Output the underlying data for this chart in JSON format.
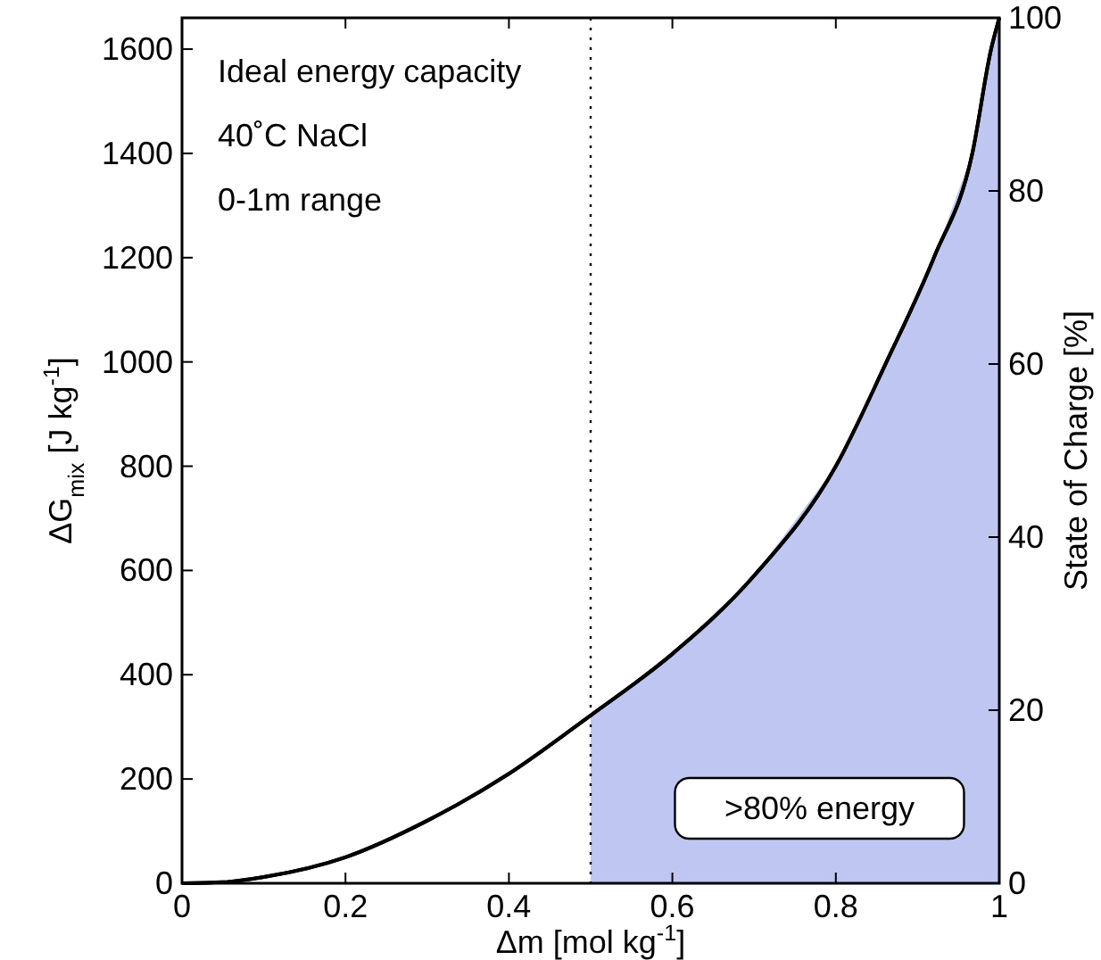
{
  "chart_data": {
    "type": "line",
    "xlabel": "Δm [mol kg$^{-1}$]",
    "ylabel": "ΔG$_{mix}$ [J kg$^{-1}$]",
    "y2label": "State of Charge [%]",
    "x": [
      0,
      0.05,
      0.1,
      0.2,
      0.3,
      0.4,
      0.5,
      0.6,
      0.7,
      0.8,
      0.862,
      0.92,
      0.967,
      0.99,
      1
    ],
    "series": [
      {
        "type": "area",
        "color": "#c0c6f2",
        "x": [
          0.5,
          0.6,
          0.7,
          0.8,
          0.862,
          0.92,
          0.967,
          0.99,
          1
        ],
        "values": [
          322,
          440,
          590,
          800,
          1000,
          1200,
          1400,
          1600,
          1660
        ]
      },
      {
        "type": "line",
        "color": "#000000",
        "values": [
          0,
          2,
          12,
          50,
          120,
          210,
          322,
          440,
          590,
          800,
          1000,
          1200,
          1400,
          1600,
          1660
        ]
      }
    ],
    "xlim": [
      0,
      1
    ],
    "xticks": [
      0,
      0.2,
      0.4,
      0.6,
      0.8,
      1
    ],
    "ylim": [
      0,
      1660
    ],
    "yticks": [
      0,
      200,
      400,
      600,
      800,
      1000,
      1200,
      1400,
      1600
    ],
    "y2lim": [
      0,
      100
    ],
    "y2ticks": [
      0,
      20,
      40,
      60,
      80,
      100
    ],
    "ref_lines": [
      {
        "axis": "x",
        "value": 0.5,
        "line_style": "dotted",
        "color": "#000000"
      }
    ],
    "annotations": [
      "Ideal energy capacity",
      "40˚C NaCl",
      "0-1m range",
      ">80% energy"
    ]
  }
}
